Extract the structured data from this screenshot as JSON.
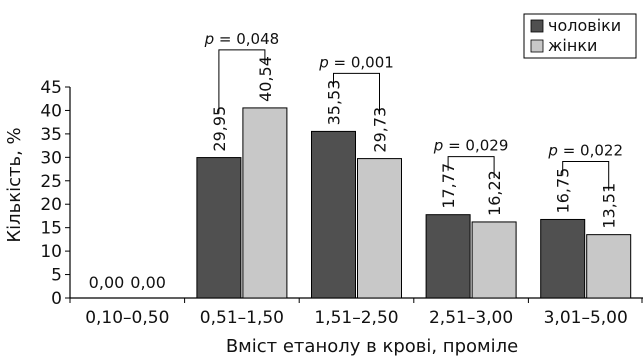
{
  "chart_data": {
    "type": "bar",
    "categories": [
      "0,10–0,50",
      "0,51–1,50",
      "1,51–2,50",
      "2,51–3,00",
      "3,01–5,00"
    ],
    "series": [
      {
        "name": "чоловіки",
        "color": "#505050",
        "values": [
          0.0,
          29.95,
          35.53,
          17.77,
          16.75
        ],
        "labels": [
          "0,00",
          "29,95",
          "35,53",
          "17,77",
          "16,75"
        ]
      },
      {
        "name": "жінки",
        "color": "#c8c8c8",
        "values": [
          0.0,
          40.54,
          29.73,
          16.22,
          13.51
        ],
        "labels": [
          "0,00",
          "40,54",
          "29,73",
          "16,22",
          "13,51"
        ]
      }
    ],
    "p_values": [
      {
        "category_index": 1,
        "label": "= 0,048"
      },
      {
        "category_index": 2,
        "label": "= 0,001"
      },
      {
        "category_index": 3,
        "label": "= 0,029"
      },
      {
        "category_index": 4,
        "label": "= 0,022"
      }
    ],
    "p_symbol": "p",
    "yticks": [
      0,
      5,
      10,
      15,
      20,
      25,
      30,
      35,
      40,
      45
    ],
    "ylim": [
      0,
      45
    ],
    "ylabel": "Кількість, %",
    "xlabel": "Вміст етанолу в крові, проміле",
    "legend_position": "top-right",
    "grid": false
  }
}
